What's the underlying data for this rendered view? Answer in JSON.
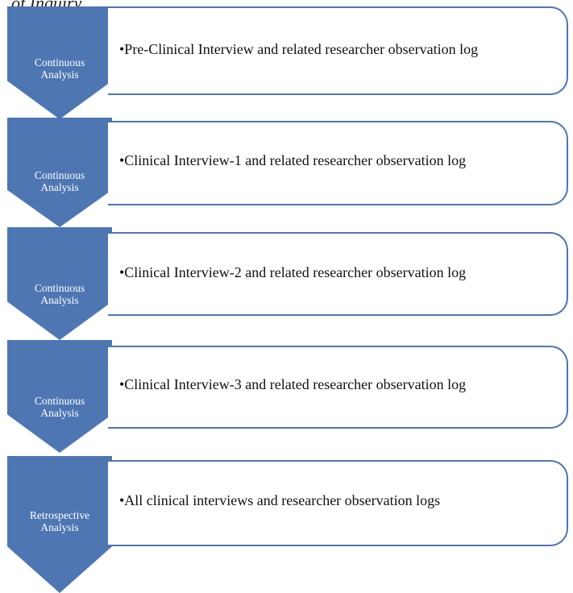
{
  "caption_fragment": "of Inquiry",
  "steps": [
    {
      "chevron_label_1": "Continuous",
      "chevron_label_2": "Analysis",
      "item": "•Pre-Clinical Interview and related researcher observation log"
    },
    {
      "chevron_label_1": "Continuous",
      "chevron_label_2": "Analysis",
      "item": "•Clinical Interview-1 and related researcher observation log"
    },
    {
      "chevron_label_1": "Continuous",
      "chevron_label_2": "Analysis",
      "item": "•Clinical Interview-2 and related researcher observation log"
    },
    {
      "chevron_label_1": "Continuous",
      "chevron_label_2": "Analysis",
      "item": "•Clinical Interview-3 and related researcher observation log"
    },
    {
      "chevron_label_1": "Retrospective",
      "chevron_label_2": "Analysis",
      "item": "•All clinical interviews and researcher observation logs"
    }
  ],
  "colors": {
    "chevron_fill": "#4d76b3",
    "box_border": "#4d76b3",
    "chevron_text": "#ffffff",
    "box_text": "#111111"
  }
}
